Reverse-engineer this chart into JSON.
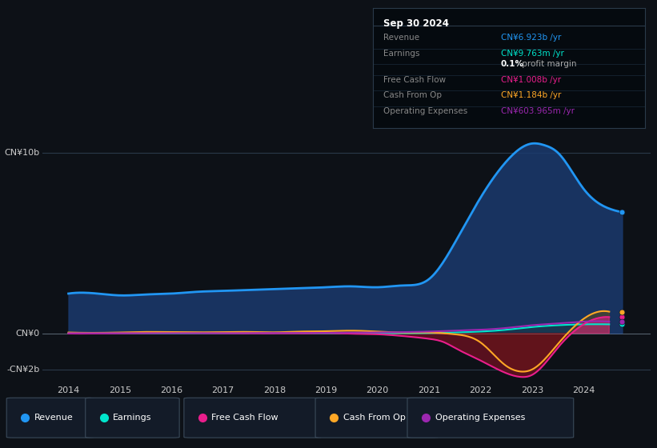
{
  "bg_color": "#0d1117",
  "chart_bg": "#0d1b2e",
  "title": "Sep 30 2024",
  "y_label_top": "CN¥10b",
  "y_label_zero": "CN¥0",
  "y_label_bottom": "-CN¥2b",
  "ylim": [
    -2500000000,
    11500000000
  ],
  "xlim": [
    2013.5,
    2025.3
  ],
  "x_ticks": [
    2014,
    2015,
    2016,
    2017,
    2018,
    2019,
    2020,
    2021,
    2022,
    2023,
    2024
  ],
  "revenue_color": "#2196f3",
  "revenue_fill": "#1a3a6e",
  "earnings_color": "#00e5cc",
  "earnings_fill": "#004d44",
  "fcf_color": "#e91e8c",
  "fcf_fill_neg": "#6b1020",
  "fcf_fill_pos": "#e91e8c",
  "cfo_color": "#ffa726",
  "cfo_fill_neg": "#5c2d00",
  "cfo_fill_pos": "#7a5500",
  "opex_color": "#9c27b0",
  "opex_fill": "#4a1060",
  "revenue_data": [
    2014.0,
    2014.25,
    2014.75,
    2015.0,
    2015.5,
    2016.0,
    2016.5,
    2017.0,
    2017.5,
    2018.0,
    2018.5,
    2019.0,
    2019.5,
    2020.0,
    2020.5,
    2021.0,
    2021.5,
    2022.0,
    2022.5,
    2023.0,
    2023.25,
    2023.5,
    2024.0,
    2024.5,
    2024.75
  ],
  "revenue_values": [
    2200000000.0,
    2250000000.0,
    2150000000.0,
    2100000000.0,
    2150000000.0,
    2200000000.0,
    2300000000.0,
    2350000000.0,
    2400000000.0,
    2450000000.0,
    2500000000.0,
    2550000000.0,
    2600000000.0,
    2550000000.0,
    2650000000.0,
    3000000000.0,
    5000000000.0,
    7500000000.0,
    9500000000.0,
    10500000000.0,
    10400000000.0,
    10000000000.0,
    8000000000.0,
    6900000000.0,
    6700000000.0
  ],
  "earnings_data": [
    2014.0,
    2014.5,
    2015.0,
    2015.5,
    2016.0,
    2016.5,
    2017.0,
    2017.5,
    2018.0,
    2018.5,
    2019.0,
    2019.5,
    2020.0,
    2020.5,
    2021.0,
    2021.5,
    2022.0,
    2022.5,
    2023.0,
    2023.5,
    2024.0,
    2024.5
  ],
  "earnings_values": [
    10000000.0,
    10000000.0,
    5000000.0,
    5000000.0,
    10000000.0,
    10000000.0,
    10000000.0,
    15000000.0,
    20000000.0,
    20000000.0,
    20000000.0,
    20000000.0,
    10000000.0,
    10000000.0,
    20000000.0,
    50000000.0,
    100000000.0,
    200000000.0,
    350000000.0,
    450000000.0,
    500000000.0,
    500000000.0
  ],
  "fcf_data": [
    2014.0,
    2014.5,
    2015.0,
    2015.5,
    2016.0,
    2016.5,
    2017.0,
    2017.5,
    2018.0,
    2018.5,
    2019.0,
    2019.5,
    2020.0,
    2020.5,
    2021.0,
    2021.3,
    2021.5,
    2022.0,
    2022.5,
    2022.75,
    2023.0,
    2023.5,
    2024.0,
    2024.5
  ],
  "fcf_values": [
    -10000000.0,
    -10000000.0,
    10000000.0,
    20000000.0,
    30000000.0,
    20000000.0,
    10000000.0,
    0.0,
    0.0,
    0.0,
    20000000.0,
    -20000000.0,
    -50000000.0,
    -150000000.0,
    -300000000.0,
    -500000000.0,
    -800000000.0,
    -1500000000.0,
    -2200000000.0,
    -2400000000.0,
    -2300000000.0,
    -800000000.0,
    500000000.0,
    900000000.0
  ],
  "cfo_data": [
    2014.0,
    2014.5,
    2015.0,
    2015.5,
    2016.0,
    2016.5,
    2017.0,
    2017.5,
    2018.0,
    2018.5,
    2019.0,
    2019.5,
    2020.0,
    2020.5,
    2021.0,
    2021.5,
    2022.0,
    2022.5,
    2022.75,
    2023.0,
    2023.5,
    2024.0,
    2024.5
  ],
  "cfo_values": [
    50000000.0,
    30000000.0,
    50000000.0,
    80000000.0,
    70000000.0,
    60000000.0,
    70000000.0,
    80000000.0,
    60000000.0,
    100000000.0,
    120000000.0,
    150000000.0,
    100000000.0,
    50000000.0,
    50000000.0,
    -50000000.0,
    -500000000.0,
    -1800000000.0,
    -2100000000.0,
    -2000000000.0,
    -600000000.0,
    800000000.0,
    1200000000.0
  ],
  "opex_data": [
    2014.0,
    2014.5,
    2015.0,
    2015.5,
    2016.0,
    2016.5,
    2017.0,
    2017.5,
    2018.0,
    2018.5,
    2019.0,
    2019.5,
    2020.0,
    2020.5,
    2021.0,
    2021.5,
    2022.0,
    2022.5,
    2023.0,
    2023.5,
    2024.0,
    2024.5
  ],
  "opex_values": [
    10000000.0,
    10000000.0,
    10000000.0,
    10000000.0,
    10000000.0,
    10000000.0,
    10000000.0,
    20000000.0,
    20000000.0,
    20000000.0,
    30000000.0,
    40000000.0,
    50000000.0,
    70000000.0,
    100000000.0,
    150000000.0,
    200000000.0,
    300000000.0,
    450000000.0,
    550000000.0,
    650000000.0,
    650000000.0
  ],
  "legend": [
    {
      "label": "Revenue",
      "color": "#2196f3"
    },
    {
      "label": "Earnings",
      "color": "#00e5cc"
    },
    {
      "label": "Free Cash Flow",
      "color": "#e91e8c"
    },
    {
      "label": "Cash From Op",
      "color": "#ffa726"
    },
    {
      "label": "Operating Expenses",
      "color": "#9c27b0"
    }
  ],
  "info_title": "Sep 30 2024",
  "info_rows": [
    {
      "label": "Revenue",
      "value": "CN¥6.923b /yr",
      "color": "#2196f3"
    },
    {
      "label": "Earnings",
      "value": "CN¥9.763m /yr",
      "color": "#00e5cc"
    },
    {
      "label": "",
      "value": "0.1%",
      "value2": " profit margin",
      "color": "#ffffff"
    },
    {
      "label": "Free Cash Flow",
      "value": "CN¥1.008b /yr",
      "color": "#e91e8c"
    },
    {
      "label": "Cash From Op",
      "value": "CN¥1.184b /yr",
      "color": "#ffa726"
    },
    {
      "label": "Operating Expenses",
      "value": "CN¥603.965m /yr",
      "color": "#9c27b0"
    }
  ]
}
